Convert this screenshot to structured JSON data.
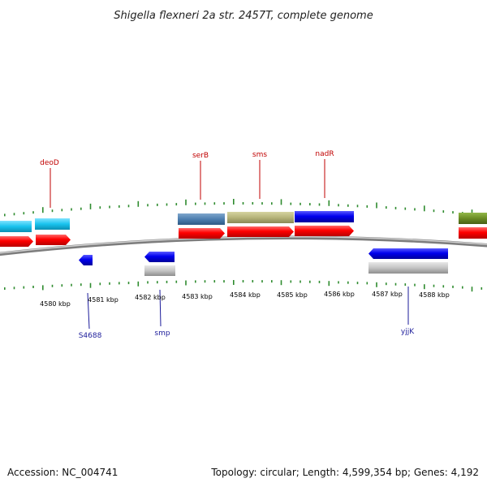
{
  "title": "Shigella flexneri 2a str. 2457T, complete genome",
  "footer": {
    "accession": "Accession: NC_004741",
    "summary": "Topology: circular; Length: 4,599,354 bp; Genes: 4,192"
  },
  "axis": {
    "unit": "kbp",
    "labels": [
      "4580 kbp",
      "4581 kbp",
      "4582 kbp",
      "4583 kbp",
      "4584 kbp",
      "4585 kbp",
      "4586 kbp",
      "4587 kbp",
      "4588 kbp"
    ]
  },
  "gene_labels": {
    "top": [
      "deoD",
      "serB",
      "sms",
      "nadR"
    ],
    "bottom": [
      "S4688",
      "smp",
      "yjjK"
    ]
  },
  "colors": {
    "tick": "#2e8b2e",
    "backbone": "#9a9a9a",
    "forward_gene": "#ff0000",
    "reverse_gene": "#0000ee",
    "cyan_feature": "#19c3ee",
    "steel_feature": "#4d7fb0",
    "khaki_feature": "#b6b47a",
    "olive_feature": "#6b8c25",
    "gray_feature": "#bdbdbd",
    "label_top": "#c00000",
    "label_bottom": "#1b1b9a"
  }
}
